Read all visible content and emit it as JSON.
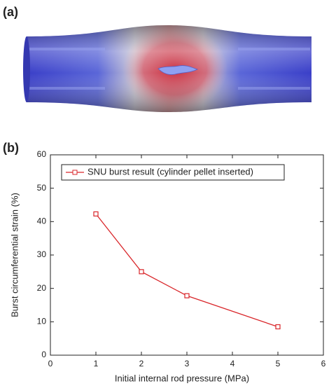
{
  "panels": {
    "a": "(a)",
    "b": "(b)"
  },
  "chart_data": {
    "type": "line",
    "x_label": "Initial internal rod pressure (MPa)",
    "y_label": "Burst circumferential strain (%)",
    "x": [
      1,
      2,
      3,
      5
    ],
    "series": [
      {
        "name": "SNU burst result (cylinder pellet inserted)",
        "color": "#d9262a",
        "values": [
          42.3,
          25,
          17.8,
          8.5
        ]
      }
    ],
    "xlim": [
      0,
      6
    ],
    "xticks": [
      0,
      1,
      2,
      3,
      4,
      5,
      6
    ],
    "ylim": [
      0,
      60
    ],
    "yticks": [
      0,
      10,
      20,
      30,
      40,
      50,
      60
    ],
    "legend": "upper-left",
    "grid": false
  }
}
